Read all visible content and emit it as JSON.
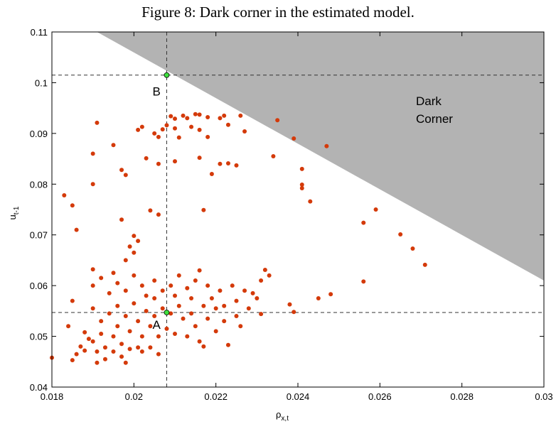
{
  "chart_data": {
    "type": "scatter",
    "title": "Figure 8: Dark corner in the estimated model.",
    "x_label": "ρ",
    "x_label_sub": "x,t",
    "y_label": "u",
    "y_label_sub": "t-1",
    "xlim": [
      0.018,
      0.03
    ],
    "ylim": [
      0.04,
      0.11
    ],
    "xticks": [
      0.018,
      0.02,
      0.022,
      0.024,
      0.026,
      0.028,
      0.03
    ],
    "yticks": [
      0.04,
      0.05,
      0.06,
      0.07,
      0.08,
      0.09,
      0.1,
      0.11
    ],
    "color": "#d43a0a",
    "dark_corner": {
      "label": "Dark",
      "label2": "Corner",
      "color": "#b3b3b3",
      "x": [
        0.0191,
        0.03,
        0.03
      ],
      "y": [
        0.11,
        0.11,
        0.061
      ]
    },
    "highlights": {
      "color": "#3ee03e",
      "labels": [
        "A",
        "B"
      ],
      "x": [
        0.0208,
        0.0208
      ],
      "y": [
        0.0547,
        0.1015
      ]
    },
    "x": [
      0.0183,
      0.0185,
      0.0186,
      0.0191,
      0.019,
      0.019,
      0.0195,
      0.0197,
      0.0198,
      0.0197,
      0.02,
      0.0201,
      0.0199,
      0.02,
      0.0198,
      0.0201,
      0.0202,
      0.0203,
      0.0204,
      0.0205,
      0.0206,
      0.0206,
      0.0206,
      0.0207,
      0.0208,
      0.0209,
      0.021,
      0.021,
      0.0211,
      0.021,
      0.0212,
      0.0213,
      0.0214,
      0.0215,
      0.0216,
      0.0216,
      0.0216,
      0.0217,
      0.0218,
      0.0218,
      0.0219,
      0.0221,
      0.0222,
      0.0221,
      0.0223,
      0.0223,
      0.0225,
      0.0226,
      0.0227,
      0.0235,
      0.0234,
      0.0239,
      0.0241,
      0.0241,
      0.0241,
      0.0243,
      0.0247,
      0.0256,
      0.0259,
      0.0265,
      0.0268,
      0.0271,
      0.0256,
      0.0248,
      0.0245,
      0.0238,
      0.0239,
      0.0232,
      0.0233,
      0.0231,
      0.0229,
      0.018,
      0.0184,
      0.0185,
      0.0185,
      0.0186,
      0.0187,
      0.0188,
      0.0188,
      0.0189,
      0.019,
      0.019,
      0.019,
      0.019,
      0.0191,
      0.0191,
      0.0192,
      0.0192,
      0.0192,
      0.0193,
      0.0193,
      0.0194,
      0.0194,
      0.0195,
      0.0195,
      0.0195,
      0.0196,
      0.0196,
      0.0196,
      0.0197,
      0.0197,
      0.0198,
      0.0198,
      0.0198,
      0.0199,
      0.0199,
      0.02,
      0.02,
      0.0201,
      0.0201,
      0.0202,
      0.0202,
      0.0202,
      0.0203,
      0.0203,
      0.0204,
      0.0204,
      0.0205,
      0.0205,
      0.0205,
      0.0206,
      0.0206,
      0.0207,
      0.0207,
      0.0208,
      0.0209,
      0.0209,
      0.021,
      0.021,
      0.0211,
      0.0211,
      0.0212,
      0.0213,
      0.0213,
      0.0214,
      0.0214,
      0.0215,
      0.0215,
      0.0216,
      0.0216,
      0.0217,
      0.0217,
      0.0218,
      0.0218,
      0.0219,
      0.022,
      0.022,
      0.0221,
      0.0222,
      0.0222,
      0.0223,
      0.0224,
      0.0225,
      0.0225,
      0.0226,
      0.0227,
      0.0228,
      0.023,
      0.0231
    ],
    "y": [
      0.0778,
      0.0758,
      0.071,
      0.0921,
      0.086,
      0.08,
      0.0877,
      0.0828,
      0.0818,
      0.073,
      0.0698,
      0.0688,
      0.0677,
      0.0665,
      0.065,
      0.0907,
      0.0913,
      0.0851,
      0.0748,
      0.09,
      0.0893,
      0.084,
      0.074,
      0.0908,
      0.0916,
      0.0934,
      0.0929,
      0.091,
      0.0892,
      0.0845,
      0.0935,
      0.093,
      0.0913,
      0.0938,
      0.0937,
      0.0907,
      0.0852,
      0.0749,
      0.0932,
      0.0893,
      0.082,
      0.093,
      0.0935,
      0.084,
      0.0917,
      0.0841,
      0.0837,
      0.0935,
      0.0904,
      0.0926,
      0.0855,
      0.089,
      0.083,
      0.0799,
      0.0792,
      0.0766,
      0.0875,
      0.0724,
      0.075,
      0.0701,
      0.0673,
      0.0641,
      0.0608,
      0.0583,
      0.0575,
      0.0563,
      0.0548,
      0.0631,
      0.062,
      0.0544,
      0.0585,
      0.0458,
      0.052,
      0.0453,
      0.057,
      0.0465,
      0.048,
      0.0508,
      0.0472,
      0.0495,
      0.0632,
      0.06,
      0.0555,
      0.049,
      0.047,
      0.0448,
      0.0615,
      0.053,
      0.0505,
      0.0478,
      0.0455,
      0.0585,
      0.0545,
      0.0625,
      0.05,
      0.047,
      0.0605,
      0.056,
      0.052,
      0.0485,
      0.046,
      0.059,
      0.054,
      0.0448,
      0.051,
      0.0475,
      0.062,
      0.0565,
      0.053,
      0.0478,
      0.06,
      0.05,
      0.047,
      0.058,
      0.055,
      0.052,
      0.0478,
      0.061,
      0.0575,
      0.054,
      0.05,
      0.0465,
      0.059,
      0.0555,
      0.0515,
      0.06,
      0.0545,
      0.058,
      0.0505,
      0.062,
      0.056,
      0.0535,
      0.0595,
      0.05,
      0.0575,
      0.0545,
      0.061,
      0.052,
      0.049,
      0.063,
      0.056,
      0.048,
      0.06,
      0.0535,
      0.0575,
      0.0555,
      0.051,
      0.059,
      0.056,
      0.053,
      0.0483,
      0.06,
      0.057,
      0.054,
      0.052,
      0.059,
      0.0555,
      0.0575,
      0.061
    ]
  }
}
